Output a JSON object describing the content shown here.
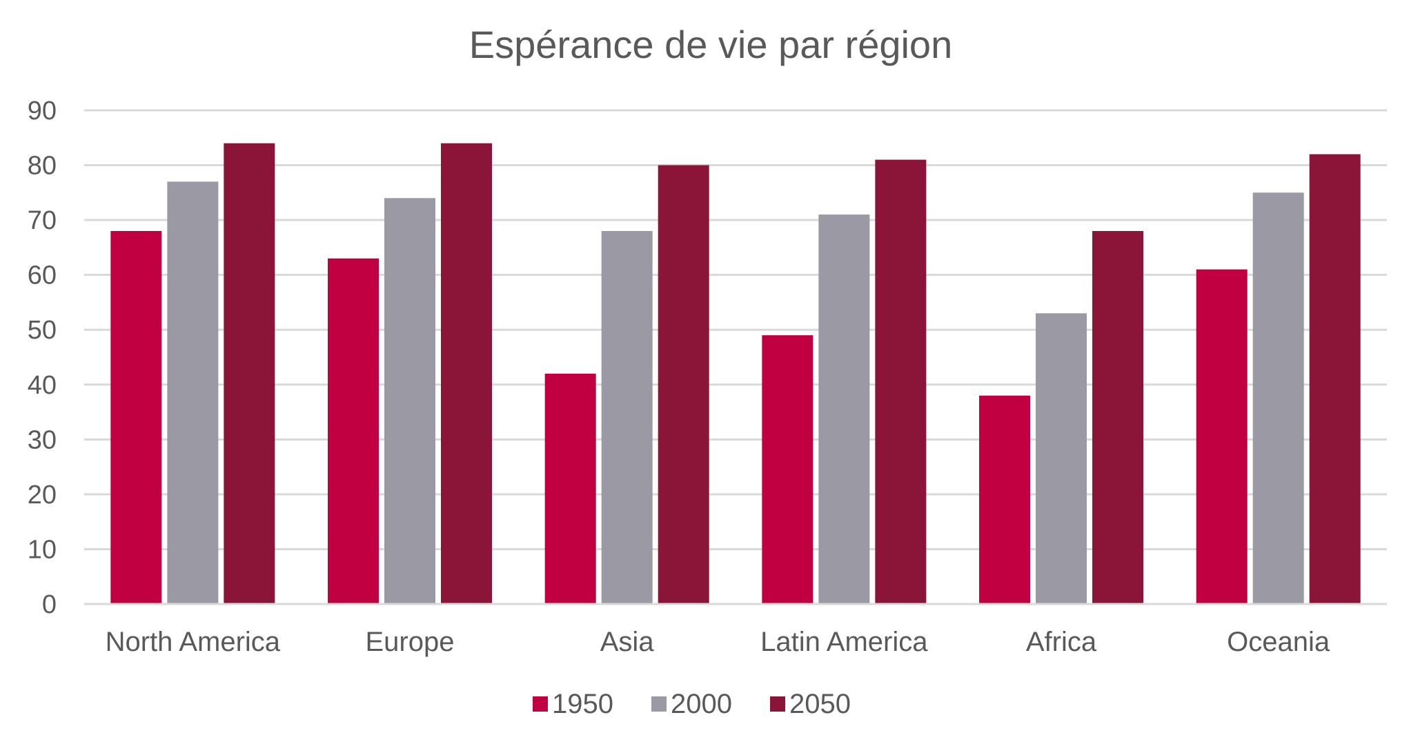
{
  "chart_data": {
    "type": "bar",
    "title": "Espérance de vie par région",
    "xlabel": "",
    "ylabel": "",
    "ylim": [
      0,
      90
    ],
    "yticks": [
      0,
      10,
      20,
      30,
      40,
      50,
      60,
      70,
      80,
      90
    ],
    "grid": true,
    "legend_position": "bottom",
    "categories": [
      "North America",
      "Europe",
      "Asia",
      "Latin America",
      "Africa",
      "Oceania"
    ],
    "series": [
      {
        "name": "1950",
        "color": "#c00040",
        "values": [
          68,
          63,
          42,
          49,
          38,
          61
        ]
      },
      {
        "name": "2000",
        "color": "#9a99a4",
        "values": [
          77,
          74,
          68,
          71,
          53,
          75
        ]
      },
      {
        "name": "2050",
        "color": "#8b1538",
        "values": [
          84,
          84,
          80,
          81,
          68,
          82
        ]
      }
    ]
  }
}
